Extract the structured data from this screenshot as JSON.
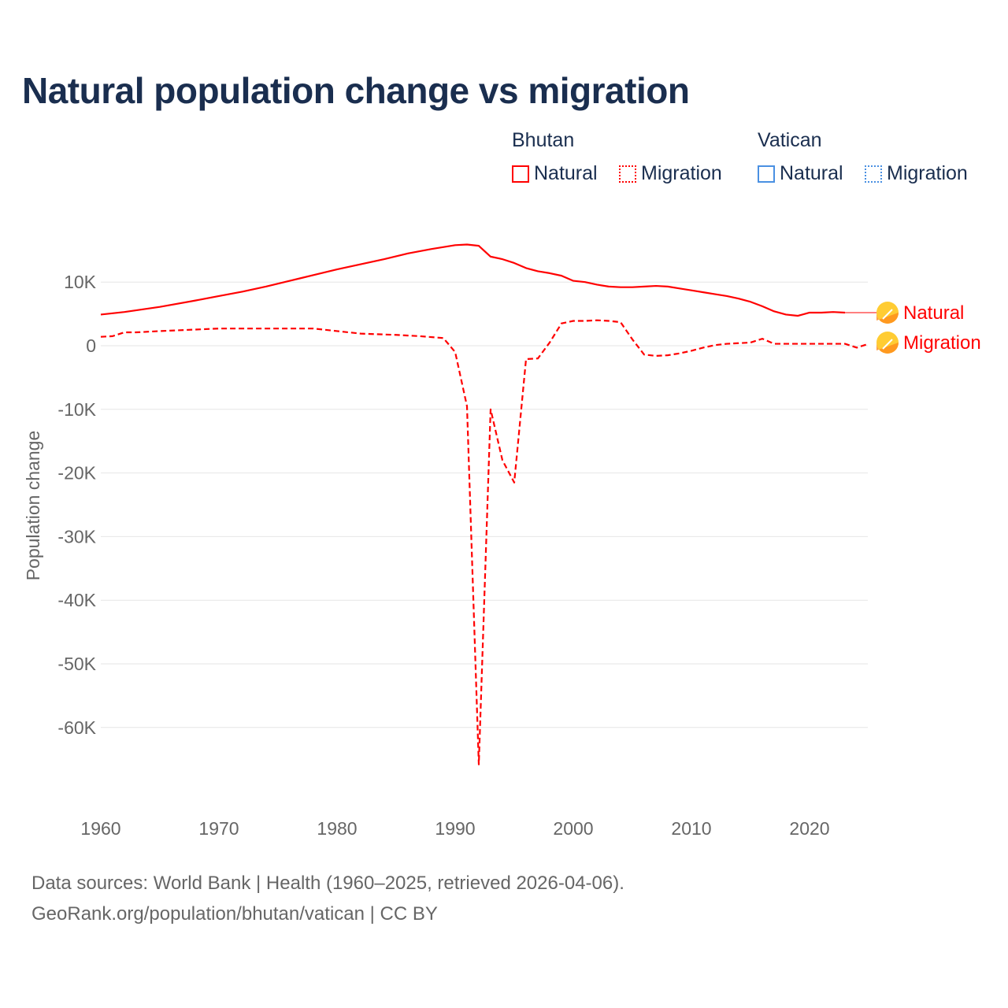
{
  "title": "Natural population change vs migration",
  "legend": {
    "groups": [
      {
        "name": "Bhutan",
        "color": "#ff0000",
        "items": [
          "Natural",
          "Migration"
        ]
      },
      {
        "name": "Vatican",
        "color": "#4a90e2",
        "items": [
          "Natural",
          "Migration"
        ]
      }
    ]
  },
  "footer": {
    "line1": "Data sources: World Bank | Health (1960–2025, retrieved 2026-04-06).",
    "line2": "GeoRank.org/population/bhutan/vatican | CC BY"
  },
  "chart_data": {
    "type": "line",
    "title": "Natural population change vs migration",
    "xlabel": "",
    "ylabel": "Population change",
    "xlim": [
      1960,
      2025
    ],
    "ylim": [
      -70000,
      19000
    ],
    "x_ticks": [
      1960,
      1970,
      1980,
      1990,
      2000,
      2010,
      2020
    ],
    "x_tick_labels": [
      "1960",
      "1970",
      "1980",
      "1990",
      "2000",
      "2010",
      "2020"
    ],
    "y_ticks": [
      10000,
      0,
      -10000,
      -20000,
      -30000,
      -40000,
      -50000,
      -60000
    ],
    "y_tick_labels": [
      "10K",
      "0",
      "-10K",
      "-20K",
      "-30K",
      "-40K",
      "-50K",
      "-60K"
    ],
    "grid": true,
    "series": [
      {
        "name": "Natural",
        "country": "Bhutan",
        "style": "solid",
        "color": "#ff0000",
        "end_label": "Natural",
        "x": [
          1960,
          1962,
          1965,
          1968,
          1970,
          1972,
          1974,
          1976,
          1978,
          1980,
          1982,
          1984,
          1986,
          1988,
          1990,
          1991,
          1992,
          1993,
          1994,
          1995,
          1996,
          1997,
          1998,
          1999,
          2000,
          2001,
          2002,
          2003,
          2004,
          2005,
          2006,
          2007,
          2008,
          2009,
          2010,
          2011,
          2012,
          2013,
          2014,
          2015,
          2016,
          2017,
          2018,
          2019,
          2020,
          2021,
          2022,
          2023
        ],
        "values": [
          4900,
          5300,
          6100,
          7100,
          7800,
          8500,
          9300,
          10200,
          11100,
          12000,
          12800,
          13600,
          14500,
          15200,
          15800,
          15900,
          15700,
          14000,
          13600,
          13000,
          12200,
          11700,
          11400,
          11000,
          10200,
          10000,
          9600,
          9300,
          9200,
          9200,
          9300,
          9400,
          9300,
          9000,
          8700,
          8400,
          8100,
          7800,
          7400,
          6900,
          6200,
          5400,
          4900,
          4700,
          5200,
          5200,
          5300,
          5200
        ]
      },
      {
        "name": "Migration",
        "country": "Bhutan",
        "style": "dashed",
        "color": "#ff0000",
        "end_label": "Migration",
        "x": [
          1960,
          1961,
          1962,
          1963,
          1965,
          1970,
          1975,
          1978,
          1980,
          1982,
          1985,
          1987,
          1989,
          1990,
          1991,
          1992,
          1993,
          1994,
          1995,
          1996,
          1997,
          1998,
          1999,
          2000,
          2001,
          2002,
          2003,
          2004,
          2005,
          2006,
          2007,
          2008,
          2009,
          2010,
          2011,
          2012,
          2013,
          2014,
          2015,
          2016,
          2017,
          2018,
          2019,
          2020,
          2021,
          2022,
          2023,
          2024,
          2025
        ],
        "values": [
          1400,
          1500,
          2100,
          2100,
          2300,
          2700,
          2700,
          2700,
          2300,
          1900,
          1700,
          1500,
          1200,
          -1000,
          -9500,
          -65800,
          -10000,
          -18000,
          -21500,
          -2100,
          -2000,
          500,
          3500,
          3900,
          3900,
          4000,
          3900,
          3700,
          1000,
          -1400,
          -1600,
          -1500,
          -1200,
          -800,
          -300,
          100,
          300,
          400,
          500,
          1100,
          300,
          300,
          300,
          300,
          300,
          300,
          300,
          -300,
          300
        ]
      }
    ]
  }
}
